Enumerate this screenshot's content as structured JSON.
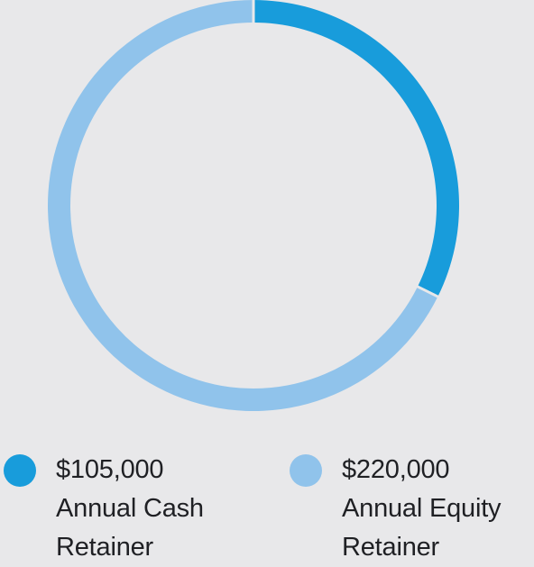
{
  "chart_data": {
    "type": "pie",
    "variant": "donut",
    "slices": [
      {
        "value": 105000,
        "amount_label": "$105,000",
        "label_line1": "Annual Cash",
        "label_line2": "Retainer",
        "color": "#189cdb"
      },
      {
        "value": 220000,
        "amount_label": "$220,000",
        "label_line1": "Annual Equity",
        "label_line2": "Retainer",
        "color": "#90c3eb"
      }
    ],
    "legend_position": "bottom",
    "background": "#e8e8ea"
  }
}
